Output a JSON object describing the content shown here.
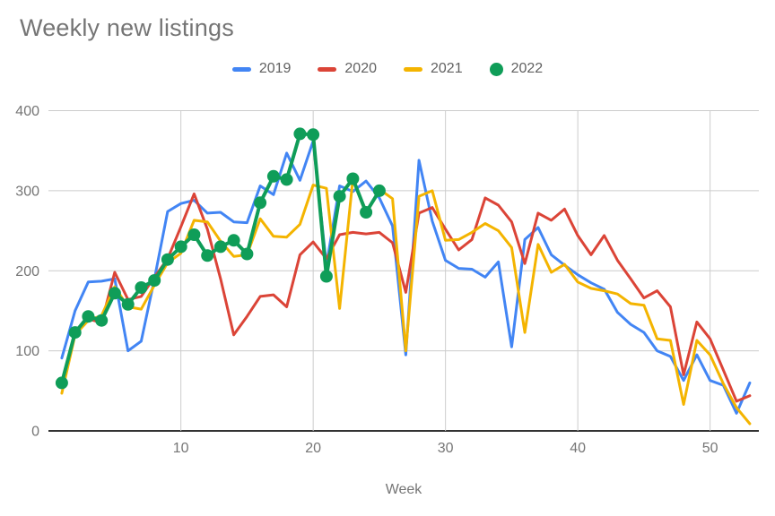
{
  "chart_data": {
    "type": "line",
    "title": "Weekly new listings",
    "xlabel": "Week",
    "ylabel": "",
    "x_start": 1,
    "x_step": 1,
    "x_end": 53,
    "xlim": [
      1,
      53
    ],
    "ylim": [
      0,
      400
    ],
    "x_ticks": [
      10,
      20,
      30,
      40,
      50
    ],
    "y_ticks": [
      0,
      100,
      200,
      300,
      400
    ],
    "grid": true,
    "legend_position": "top",
    "series": [
      {
        "name": "2019",
        "color": "#4285F4",
        "style": "line",
        "values": [
          91,
          150,
          186,
          187,
          190,
          100,
          112,
          190,
          274,
          284,
          288,
          272,
          273,
          261,
          260,
          306,
          295,
          347,
          313,
          362,
          207,
          306,
          299,
          312,
          291,
          256,
          95,
          338,
          262,
          213,
          203,
          202,
          192,
          211,
          105,
          239,
          254,
          220,
          207,
          195,
          185,
          177,
          148,
          133,
          123,
          100,
          93,
          63,
          95,
          63,
          57,
          22,
          60
        ]
      },
      {
        "name": "2020",
        "color": "#DB4437",
        "style": "line",
        "values": [
          58,
          122,
          140,
          135,
          198,
          164,
          168,
          192,
          215,
          255,
          296,
          252,
          190,
          120,
          143,
          168,
          170,
          155,
          220,
          236,
          215,
          245,
          248,
          246,
          248,
          235,
          173,
          272,
          279,
          252,
          226,
          239,
          291,
          282,
          261,
          209,
          272,
          263,
          277,
          244,
          220,
          244,
          213,
          190,
          166,
          175,
          155,
          70,
          136,
          115,
          76,
          37,
          44
        ]
      },
      {
        "name": "2021",
        "color": "#F4B400",
        "style": "line",
        "values": [
          47,
          120,
          138,
          144,
          180,
          155,
          152,
          182,
          210,
          222,
          263,
          261,
          237,
          218,
          220,
          265,
          243,
          242,
          258,
          307,
          303,
          153,
          315,
          271,
          302,
          290,
          100,
          293,
          300,
          238,
          239,
          248,
          259,
          250,
          229,
          123,
          233,
          198,
          208,
          186,
          178,
          175,
          171,
          159,
          157,
          115,
          113,
          33,
          113,
          95,
          59,
          29,
          9
        ]
      },
      {
        "name": "2022",
        "color": "#0F9D58",
        "style": "line+markers",
        "values": [
          60,
          123,
          143,
          138,
          172,
          158,
          179,
          188,
          214,
          230,
          245,
          219,
          230,
          238,
          221,
          285,
          318,
          314,
          371,
          370,
          193,
          293,
          315,
          273,
          300
        ]
      }
    ]
  },
  "colors": {
    "background": "#ffffff",
    "grid": "#cccccc",
    "axis": "#333333",
    "title_text": "#757575",
    "tick_text": "#757575",
    "legend_text": "#616161"
  }
}
